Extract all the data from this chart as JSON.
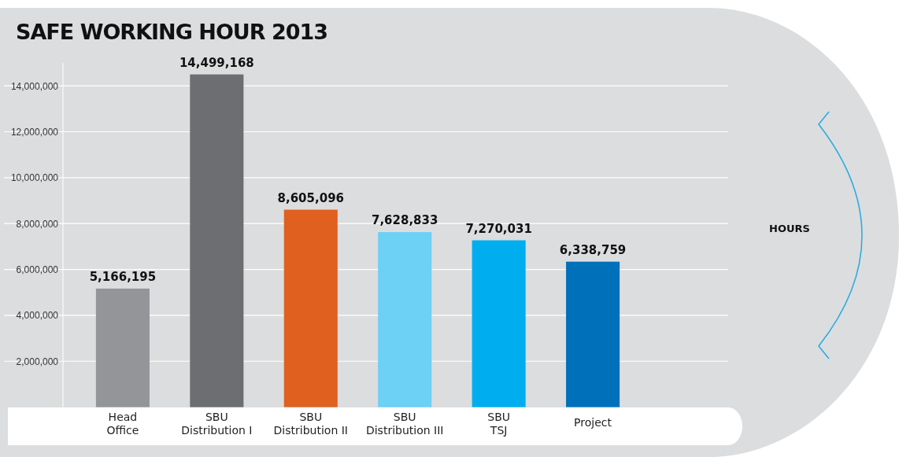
{
  "chart_data": {
    "type": "bar",
    "title": "SAFE WORKING HOUR 2013",
    "annotations": [
      "HOURS"
    ],
    "categories": [
      "Head\nOffice",
      "SBU\nDistribution I",
      "SBU\nDistribution II",
      "SBU\nDistribution III",
      "SBU\nTSJ",
      "Project"
    ],
    "values": [
      5166195,
      14499168,
      8605096,
      7628833,
      7270031,
      6338759
    ],
    "value_labels": [
      "5,166,195",
      "14,499,168",
      "8,605,096",
      "7,628,833",
      "7,270,031",
      "6,338,759"
    ],
    "colors": [
      "#939598",
      "#6d6e71",
      "#e06020",
      "#6dd0f5",
      "#00aeef",
      "#0070bb"
    ],
    "ylim": [
      0,
      15000000
    ],
    "yticks": [
      {
        "value": 2000000,
        "label": "2,000,000"
      },
      {
        "value": 4000000,
        "label": "4,000,000"
      },
      {
        "value": 6000000,
        "label": "6,000,000"
      },
      {
        "value": 8000000,
        "label": "8,000,000"
      },
      {
        "value": 10000000,
        "label": "10,000,000"
      },
      {
        "value": 12000000,
        "label": "12,000,000"
      },
      {
        "value": 14000000,
        "label": "14,000,000"
      }
    ],
    "grid": "y"
  }
}
